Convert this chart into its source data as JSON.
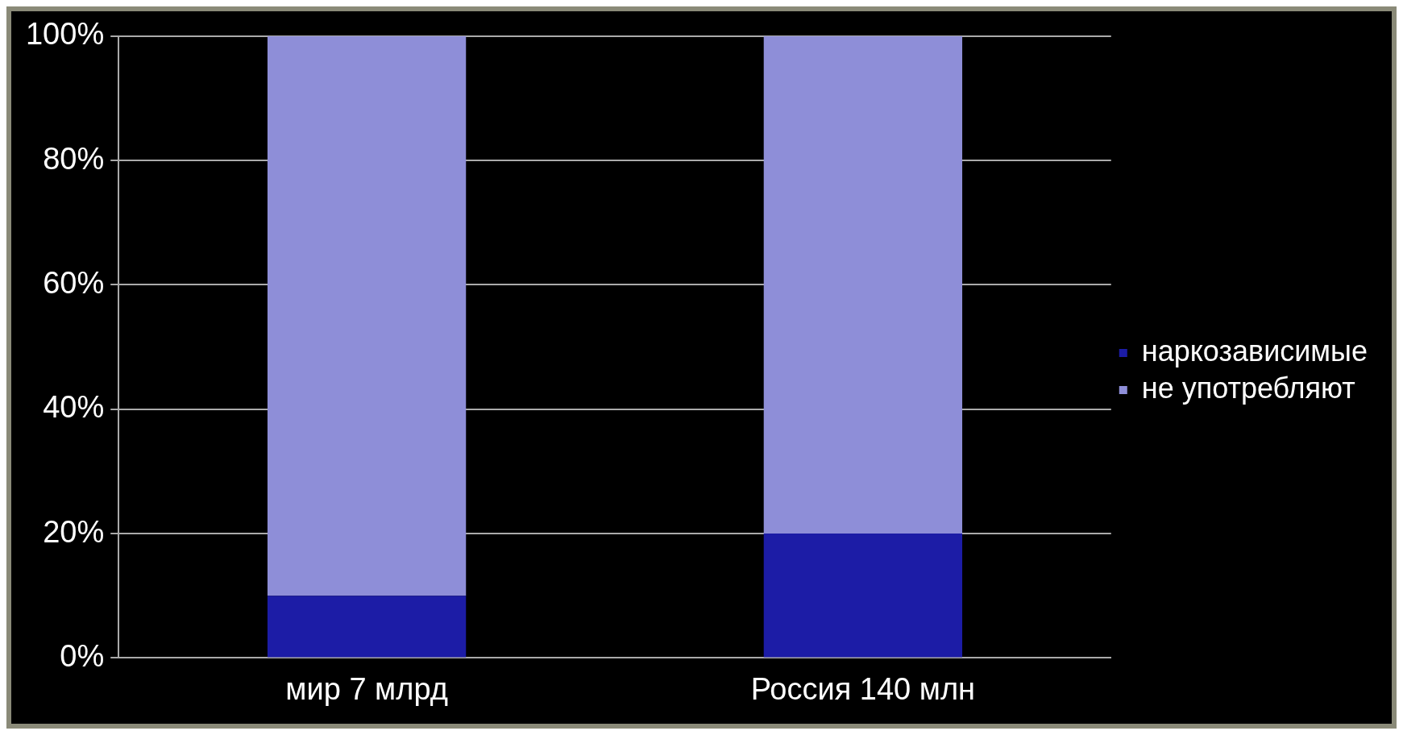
{
  "chart_data": {
    "type": "bar",
    "stacked": true,
    "categories": [
      "мир 7 млрд",
      "Россия 140 млн"
    ],
    "series": [
      {
        "name": "наркозависимые",
        "color": "#1c1ca6",
        "values": [
          10,
          20
        ]
      },
      {
        "name": "не употребляют",
        "color": "#8e8ed8",
        "values": [
          90,
          80
        ]
      }
    ],
    "ylim": [
      0,
      100
    ],
    "yticks": [
      {
        "value": 0,
        "label": "0%"
      },
      {
        "value": 20,
        "label": "20%"
      },
      {
        "value": 40,
        "label": "40%"
      },
      {
        "value": 60,
        "label": "60%"
      },
      {
        "value": 80,
        "label": "80%"
      },
      {
        "value": 100,
        "label": "100%"
      }
    ],
    "grid": "y",
    "legend": "right"
  }
}
